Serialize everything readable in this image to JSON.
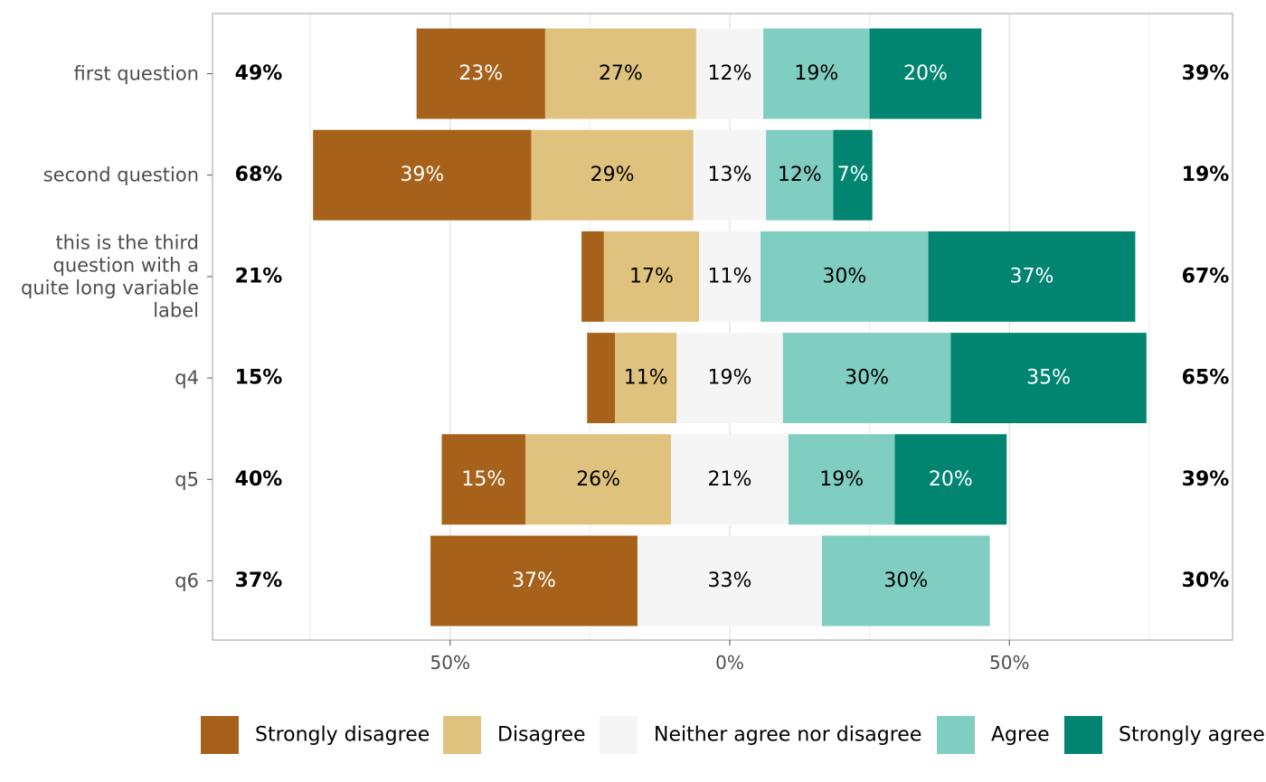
{
  "chart_data": {
    "type": "bar",
    "orientation": "horizontal",
    "diverging": true,
    "categories": [
      "first question",
      "second question",
      "this is the third question with a quite long variable label",
      "q4",
      "q5",
      "q6"
    ],
    "category_label_lines": [
      [
        "first question"
      ],
      [
        "second question"
      ],
      [
        "this is the third",
        "question with a",
        "quite long variable",
        "label"
      ],
      [
        "q4"
      ],
      [
        "q5"
      ],
      [
        "q6"
      ]
    ],
    "series": [
      {
        "name": "Strongly disagree",
        "color": "#A6611A",
        "values": [
          23,
          39,
          4,
          5,
          15,
          37
        ],
        "labels": [
          "23%",
          "39%",
          "",
          "",
          "15%",
          "37%"
        ]
      },
      {
        "name": "Disagree",
        "color": "#DFC27D",
        "values": [
          27,
          29,
          17,
          11,
          26,
          0
        ],
        "labels": [
          "27%",
          "29%",
          "17%",
          "11%",
          "26%",
          ""
        ]
      },
      {
        "name": "Neither agree nor disagree",
        "color": "#F5F5F5",
        "values": [
          12,
          13,
          11,
          19,
          21,
          33
        ],
        "labels": [
          "12%",
          "13%",
          "11%",
          "19%",
          "21%",
          "33%"
        ]
      },
      {
        "name": "Agree",
        "color": "#80CDC1",
        "values": [
          19,
          12,
          30,
          30,
          19,
          30
        ],
        "labels": [
          "19%",
          "12%",
          "30%",
          "30%",
          "19%",
          "30%"
        ]
      },
      {
        "name": "Strongly agree",
        "color": "#018571",
        "values": [
          20,
          7,
          37,
          35,
          20,
          0
        ],
        "labels": [
          "20%",
          "7%",
          "37%",
          "35%",
          "20%",
          ""
        ]
      }
    ],
    "left_totals": [
      "49%",
      "68%",
      "21%",
      "15%",
      "40%",
      "37%"
    ],
    "right_totals": [
      "39%",
      "19%",
      "67%",
      "65%",
      "39%",
      "30%"
    ],
    "x_ticks": [
      {
        "value": -50,
        "label": "50%"
      },
      {
        "value": 0,
        "label": "0%"
      },
      {
        "value": 50,
        "label": "50%"
      }
    ],
    "xlim": [
      -92,
      92
    ],
    "grid": true,
    "legend_position": "bottom",
    "label_colors": {
      "dark": "#ffffff",
      "light": "#000000"
    }
  }
}
